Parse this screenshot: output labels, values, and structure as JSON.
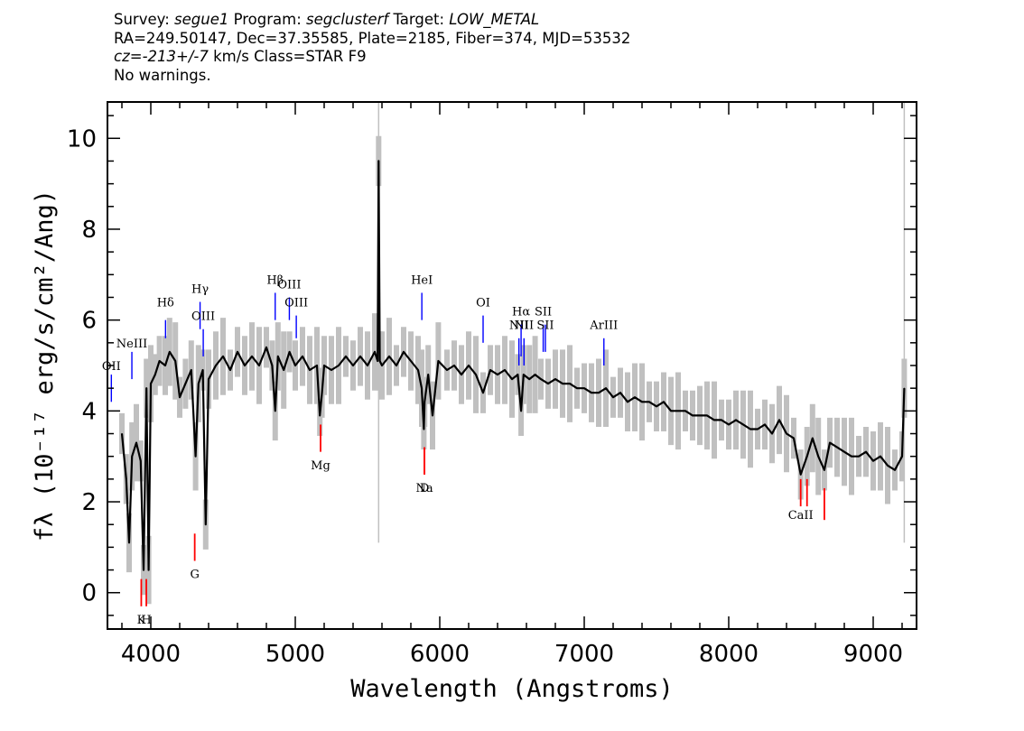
{
  "header": {
    "survey_label": "Survey:",
    "survey": "segue1",
    "program_label": "Program:",
    "program": "segclusterf",
    "target_label": "Target:",
    "target": "LOW_METAL",
    "line2": "RA=249.50147, Dec=37.35585, Plate=2185, Fiber=374, MJD=53532",
    "cz_label": "cz=",
    "cz": "-213+/-7",
    "line3_rest": " km/s Class=STAR F9",
    "line4": "No warnings."
  },
  "chart_data": {
    "type": "line",
    "xlabel": "Wavelength (Angstroms)",
    "ylabel": "fλ (10⁻¹⁷ erg/s/cm²/Ang)",
    "xlim": [
      3700,
      9300
    ],
    "ylim": [
      -0.8,
      10.8
    ],
    "x_ticks": [
      4000,
      5000,
      6000,
      7000,
      8000,
      9000
    ],
    "y_ticks": [
      0,
      2,
      4,
      6,
      8,
      10
    ],
    "colors": {
      "flux": "#000000",
      "error_band": "#c0c0c0",
      "emission": "#0000ff",
      "absorption": "#ff0000"
    },
    "spectrum": {
      "x": [
        3800,
        3830,
        3850,
        3870,
        3900,
        3930,
        3950,
        3970,
        3985,
        4000,
        4030,
        4060,
        4100,
        4130,
        4170,
        4200,
        4240,
        4280,
        4310,
        4330,
        4360,
        4380,
        4400,
        4450,
        4500,
        4550,
        4600,
        4650,
        4700,
        4750,
        4800,
        4840,
        4861,
        4880,
        4920,
        4960,
        5000,
        5050,
        5100,
        5150,
        5170,
        5185,
        5200,
        5250,
        5300,
        5350,
        5400,
        5450,
        5500,
        5550,
        5570,
        5577,
        5585,
        5600,
        5650,
        5700,
        5750,
        5800,
        5850,
        5875,
        5890,
        5895,
        5920,
        5950,
        5990,
        6050,
        6100,
        6150,
        6200,
        6250,
        6300,
        6350,
        6400,
        6450,
        6500,
        6540,
        6563,
        6580,
        6620,
        6660,
        6700,
        6750,
        6800,
        6850,
        6900,
        6950,
        7000,
        7050,
        7100,
        7150,
        7200,
        7250,
        7300,
        7350,
        7400,
        7450,
        7500,
        7550,
        7600,
        7650,
        7700,
        7750,
        7800,
        7850,
        7900,
        7950,
        8000,
        8050,
        8100,
        8150,
        8200,
        8250,
        8300,
        8350,
        8400,
        8450,
        8498,
        8542,
        8580,
        8620,
        8662,
        8700,
        8750,
        8800,
        8850,
        8900,
        8950,
        9000,
        9050,
        9100,
        9150,
        9200,
        9215
      ],
      "y": [
        3.5,
        2.5,
        1.1,
        3.0,
        3.3,
        2.9,
        0.5,
        4.5,
        0.5,
        4.6,
        4.8,
        5.1,
        5.0,
        5.3,
        5.1,
        4.3,
        4.6,
        4.9,
        3.0,
        4.6,
        4.9,
        1.5,
        4.7,
        5.0,
        5.2,
        4.9,
        5.3,
        5.0,
        5.2,
        5.0,
        5.4,
        5.0,
        4.0,
        5.2,
        4.9,
        5.3,
        5.0,
        5.2,
        4.9,
        5.0,
        3.9,
        4.4,
        5.0,
        4.9,
        5.0,
        5.2,
        5.0,
        5.2,
        5.0,
        5.3,
        5.1,
        9.5,
        5.1,
        5.0,
        5.2,
        5.0,
        5.3,
        5.1,
        4.9,
        4.5,
        3.6,
        4.2,
        4.8,
        3.9,
        5.1,
        4.9,
        5.0,
        4.8,
        5.0,
        4.8,
        4.4,
        4.9,
        4.8,
        4.9,
        4.7,
        4.8,
        4.0,
        4.8,
        4.7,
        4.8,
        4.7,
        4.6,
        4.7,
        4.6,
        4.6,
        4.5,
        4.5,
        4.4,
        4.4,
        4.5,
        4.3,
        4.4,
        4.2,
        4.3,
        4.2,
        4.2,
        4.1,
        4.2,
        4.0,
        4.0,
        4.0,
        3.9,
        3.9,
        3.9,
        3.8,
        3.8,
        3.7,
        3.8,
        3.7,
        3.6,
        3.6,
        3.7,
        3.5,
        3.8,
        3.5,
        3.4,
        2.6,
        3.0,
        3.4,
        3.0,
        2.7,
        3.3,
        3.2,
        3.1,
        3.0,
        3.0,
        3.1,
        2.9,
        3.0,
        2.8,
        2.7,
        3.0,
        4.5
      ]
    },
    "emission_lines": [
      {
        "label": "Hδ",
        "x": 4102,
        "label_y": 6.3,
        "y0": 5.6,
        "y1": 6.0
      },
      {
        "label": "Hγ",
        "x": 4341,
        "label_y": 6.6,
        "y0": 5.8,
        "y1": 6.4
      },
      {
        "label": "OIII",
        "x": 4363,
        "label_y": 6.0,
        "y0": 5.2,
        "y1": 5.8
      },
      {
        "label": "Hβ",
        "x": 4861,
        "label_y": 6.8,
        "y0": 6.0,
        "y1": 6.6
      },
      {
        "label": "OIII",
        "x": 4959,
        "label_y": 6.7,
        "y0": 6.0,
        "y1": 6.5
      },
      {
        "label": "OIII",
        "x": 5007,
        "label_y": 6.3,
        "y0": 5.6,
        "y1": 6.1
      },
      {
        "label": "HeI",
        "x": 5876,
        "label_y": 6.8,
        "y0": 6.0,
        "y1": 6.6
      },
      {
        "label": "OI",
        "x": 6300,
        "label_y": 6.3,
        "y0": 5.5,
        "y1": 6.1
      },
      {
        "label": "NII",
        "x": 6548,
        "label_y": 5.8,
        "y0": 5.0,
        "y1": 5.6
      },
      {
        "label": "Hα",
        "x": 6563,
        "label_y": 6.1,
        "y0": 5.2,
        "y1": 5.9
      },
      {
        "label": "NII",
        "x": 6583,
        "label_y": 5.8,
        "y0": 5.0,
        "y1": 5.6
      },
      {
        "label": "SII",
        "x": 6716,
        "label_y": 6.1,
        "y0": 5.3,
        "y1": 5.9
      },
      {
        "label": "SII",
        "x": 6731,
        "label_y": 5.8,
        "y0": 5.3,
        "y1": 5.9
      },
      {
        "label": "ArIII",
        "x": 7136,
        "label_y": 5.8,
        "y0": 5.0,
        "y1": 5.6
      },
      {
        "label": "NeIII",
        "x": 3869,
        "label_y": 5.4,
        "y0": 4.7,
        "y1": 5.3
      },
      {
        "label": "OII",
        "x": 3727,
        "label_y": 4.9,
        "y0": 4.2,
        "y1": 4.8
      }
    ],
    "absorption_lines": [
      {
        "label": "K",
        "x": 3934,
        "label_y": -0.6,
        "y0": -0.3,
        "y1": 0.3
      },
      {
        "label": "H",
        "x": 3969,
        "label_y": -0.6,
        "y0": -0.3,
        "y1": 0.3
      },
      {
        "label": "G",
        "x": 4304,
        "label_y": 0.4,
        "y0": 0.7,
        "y1": 1.3
      },
      {
        "label": "Mg",
        "x": 5175,
        "label_y": 2.8,
        "y0": 3.1,
        "y1": 3.7
      },
      {
        "label": "Na",
        "x": 5894,
        "label_y": 2.3,
        "y0": 2.6,
        "y1": 3.2
      },
      {
        "label": "D",
        "x": 5894,
        "label_y": 2.3,
        "y0": 2.6,
        "y1": 3.2
      },
      {
        "label": "CaII",
        "x": 8498,
        "label_y": 1.7,
        "y0": 1.9,
        "y1": 2.5
      },
      {
        "label": "CaII",
        "x": 8542,
        "label_y": 1.7,
        "y0": 1.9,
        "y1": 2.5
      },
      {
        "label": "CaII",
        "x": 8662,
        "label_y": 1.7,
        "y0": 1.6,
        "y1": 2.3
      }
    ],
    "line_label_text": {
      "K": "K",
      "H": "H",
      "KH": "KH",
      "Na D": "Na  D",
      "CaII": "CaII"
    }
  }
}
